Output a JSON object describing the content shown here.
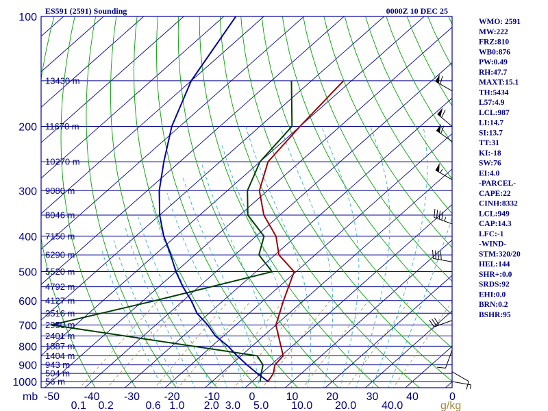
{
  "chart_data": {
    "type": "skew-t log-p sounding",
    "title": "ES591 (2591) Sounding",
    "time": "0000Z 10 DEC 25",
    "pressure_unit_label": "mb",
    "mixing_ratio_unit_label": "g/kg",
    "pressure_ticks": [
      "100",
      "200",
      "300",
      "400",
      "500",
      "600",
      "700",
      "800",
      "900",
      "1000"
    ],
    "temperature_ticks": [
      "-50",
      "-40",
      "-30",
      "-20",
      "-10",
      "0",
      "10",
      "20",
      "30",
      "40",
      "0"
    ],
    "mixing_ratio_ticks": [
      "0.1",
      "0.2",
      "0.6",
      "1.0",
      "2.0",
      "3.0",
      "5.0",
      "10.0",
      "20.0",
      "40.0"
    ],
    "height_labels": [
      {
        "p": 150,
        "text": "13430 m"
      },
      {
        "p": 200,
        "text": "11670 m"
      },
      {
        "p": 250,
        "text": "10270 m"
      },
      {
        "p": 300,
        "text": "9080 m"
      },
      {
        "p": 350,
        "text": "8046 m"
      },
      {
        "p": 400,
        "text": "7150 m"
      },
      {
        "p": 450,
        "text": "6290 m"
      },
      {
        "p": 500,
        "text": "5520 m"
      },
      {
        "p": 550,
        "text": "4792 m"
      },
      {
        "p": 600,
        "text": "4127 m"
      },
      {
        "p": 650,
        "text": "3516 m"
      },
      {
        "p": 700,
        "text": "2950 m"
      },
      {
        "p": 750,
        "text": "2401 m"
      },
      {
        "p": 800,
        "text": "1887 m"
      },
      {
        "p": 850,
        "text": "1404 m"
      },
      {
        "p": 900,
        "text": "943 m"
      },
      {
        "p": 950,
        "text": "504 m"
      },
      {
        "p": 1000,
        "text": "56 m"
      }
    ],
    "series": [
      {
        "name": "temperature",
        "color": "#a00000",
        "p": [
          150,
          200,
          250,
          300,
          350,
          400,
          450,
          500,
          600,
          700,
          850,
          900,
          950,
          1000
        ],
        "t": [
          -62,
          -60,
          -58,
          -52,
          -44,
          -35,
          -29,
          -20.5,
          -15,
          -10,
          0.5,
          1,
          3,
          4
        ]
      },
      {
        "name": "dewpoint",
        "color": "#004000",
        "p": [
          150,
          200,
          250,
          300,
          350,
          400,
          450,
          500,
          600,
          700,
          850,
          900,
          950,
          1000
        ],
        "t": [
          -75,
          -62,
          -60,
          -55,
          -48,
          -38,
          -34,
          -26,
          -47,
          -66,
          -6,
          -2,
          0,
          2
        ]
      },
      {
        "name": "parcel",
        "color": "#0000a0",
        "p": [
          100,
          150,
          200,
          250,
          300,
          350,
          400,
          450,
          500,
          550,
          600,
          650,
          700,
          750,
          800,
          850,
          900,
          950,
          1000
        ],
        "t": [
          -107,
          -100,
          -92,
          -84,
          -77,
          -70,
          -63,
          -56,
          -50,
          -44,
          -38,
          -33,
          -27,
          -22,
          -16,
          -11,
          -6,
          -1,
          4
        ]
      }
    ],
    "wind_barbs": [
      {
        "p": 160,
        "dir": 300,
        "spd": 60
      },
      {
        "p": 200,
        "dir": 310,
        "spd": 60
      },
      {
        "p": 220,
        "dir": 305,
        "spd": 60
      },
      {
        "p": 280,
        "dir": 300,
        "spd": 55
      },
      {
        "p": 370,
        "dir": 290,
        "spd": 45
      },
      {
        "p": 470,
        "dir": 280,
        "spd": 40
      },
      {
        "p": 680,
        "dir": 250,
        "spd": 30
      },
      {
        "p": 820,
        "dir": 200,
        "spd": 10
      },
      {
        "p": 940,
        "dir": 120,
        "spd": 10
      },
      {
        "p": 1000,
        "dir": 100,
        "spd": 5
      }
    ],
    "indices": [
      "WMO: 2591",
      "MW:222",
      "FRZ:810",
      "WB0:876",
      "PW:0.49",
      "RH:47.7",
      "MAXT:15.1",
      "TH:5434",
      "L57:4.9",
      "LCL:987",
      "LI:14.7",
      "SI:13.7",
      "TT:31",
      "KI:-18",
      "SW:76",
      "EI:4.0",
      "-PARCEL-",
      "CAPE:22",
      "CINH:8332",
      "LCL:949",
      "CAP:14.3",
      "LFC:-1",
      "-WIND-",
      "STM:320/20",
      "HEL:144",
      "SHR+:0.0",
      "SRDS:92",
      "EHI:0.0",
      "BRN:0.2",
      "BSHR:95"
    ]
  }
}
